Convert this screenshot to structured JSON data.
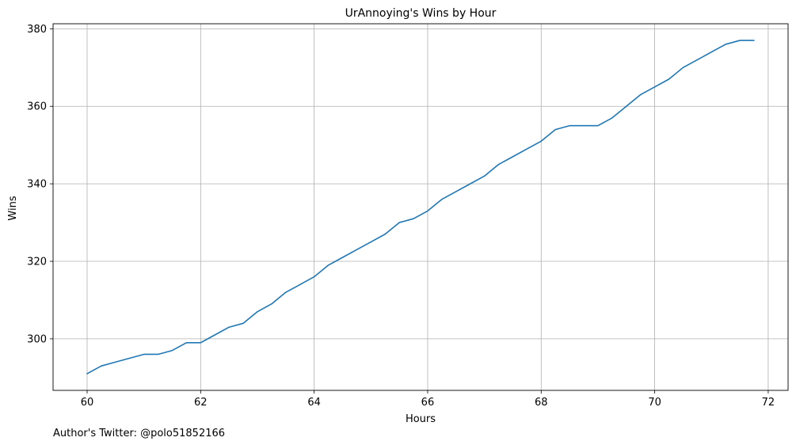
{
  "chart_data": {
    "type": "line",
    "title": "UrAnnoying's Wins by Hour",
    "xlabel": "Hours",
    "ylabel": "Wins",
    "xlim": [
      59.4,
      72.35
    ],
    "ylim": [
      286.7,
      381.3
    ],
    "xticks": [
      60,
      62,
      64,
      66,
      68,
      70,
      72
    ],
    "yticks": [
      300,
      320,
      340,
      360,
      380
    ],
    "grid": true,
    "line_color": "#1f77b4",
    "series": [
      {
        "x": [
          60,
          60.25,
          60.5,
          60.75,
          61,
          61.25,
          61.5,
          61.75,
          62,
          62.25,
          62.5,
          62.75,
          63,
          63.25,
          63.5,
          63.75,
          64,
          64.25,
          64.5,
          64.75,
          65,
          65.25,
          65.5,
          65.75,
          66,
          66.25,
          66.5,
          66.75,
          67,
          67.25,
          67.5,
          67.75,
          68,
          68.25,
          68.5,
          68.75,
          69,
          69.25,
          69.5,
          69.75,
          70,
          70.25,
          70.5,
          70.75,
          71,
          71.25,
          71.5,
          71.75
        ],
        "values": [
          291,
          293,
          294,
          295,
          296,
          296,
          297,
          299,
          299,
          301,
          303,
          304,
          307,
          309,
          312,
          314,
          316,
          319,
          321,
          323,
          325,
          327,
          330,
          331,
          333,
          336,
          338,
          340,
          342,
          345,
          347,
          349,
          351,
          354,
          355,
          355,
          355,
          357,
          360,
          363,
          365,
          367,
          370,
          372,
          374,
          376,
          377,
          377
        ]
      }
    ]
  },
  "footnote": "Author's Twitter: @polo51852166"
}
